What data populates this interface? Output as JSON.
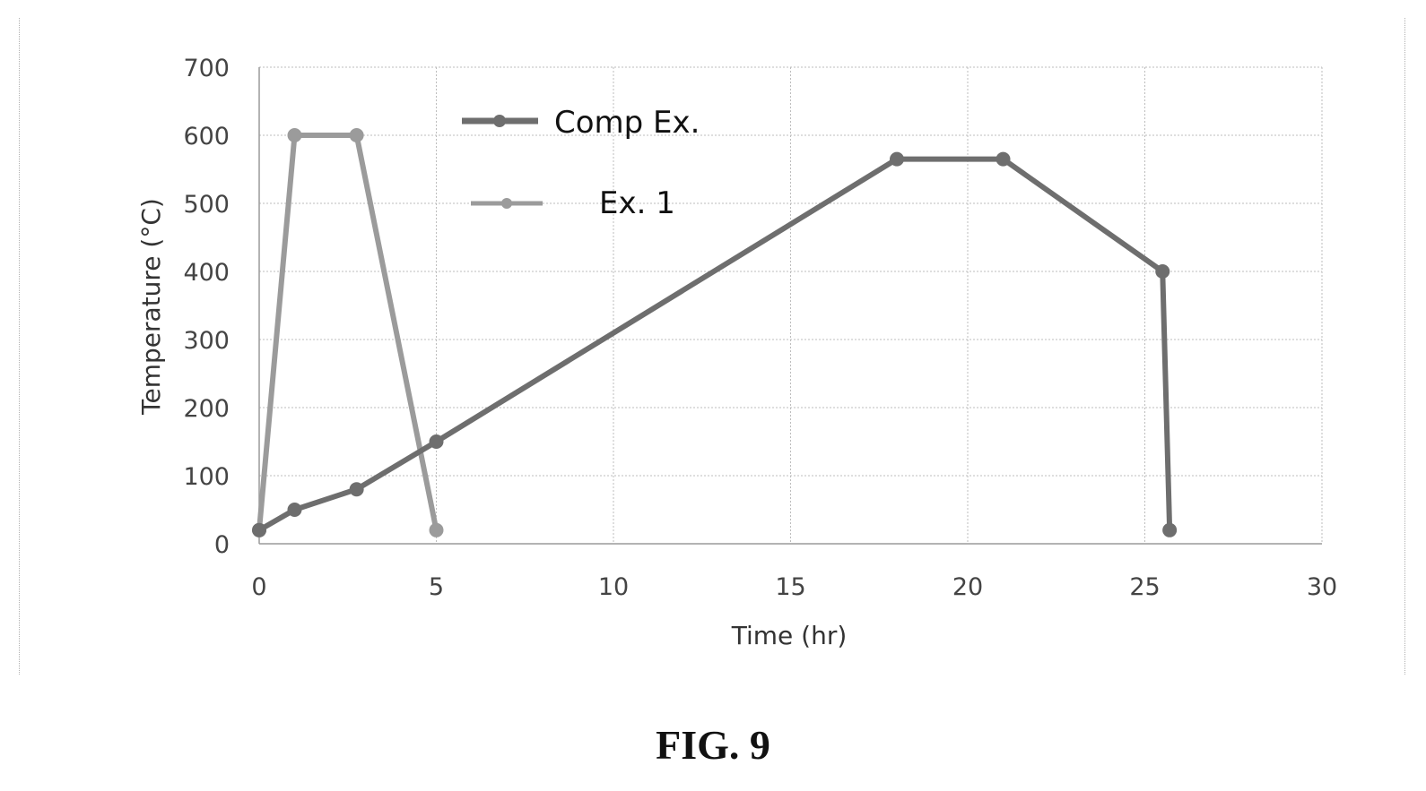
{
  "figure": {
    "caption": "FIG. 9"
  },
  "chart_data": {
    "type": "line",
    "xlabel": "Time (hr)",
    "ylabel": "Temperature (°C)",
    "xlim": [
      0,
      30
    ],
    "ylim": [
      0,
      700
    ],
    "xticks": [
      0,
      5,
      10,
      15,
      20,
      25,
      30
    ],
    "yticks": [
      0,
      100,
      200,
      300,
      400,
      500,
      600,
      700
    ],
    "grid": true,
    "legend_position": "top-left",
    "series": [
      {
        "name": "Comp Ex.",
        "color": "#6e6e6e",
        "marker": "circle",
        "x": [
          0,
          1,
          2.75,
          5,
          18,
          21,
          25.5,
          25.7
        ],
        "y": [
          20,
          50,
          80,
          150,
          565,
          565,
          400,
          20
        ]
      },
      {
        "name": "Ex. 1",
        "color": "#9b9b9b",
        "marker": "circle",
        "x": [
          0,
          1,
          2.75,
          5
        ],
        "y": [
          20,
          600,
          600,
          20
        ]
      }
    ]
  }
}
